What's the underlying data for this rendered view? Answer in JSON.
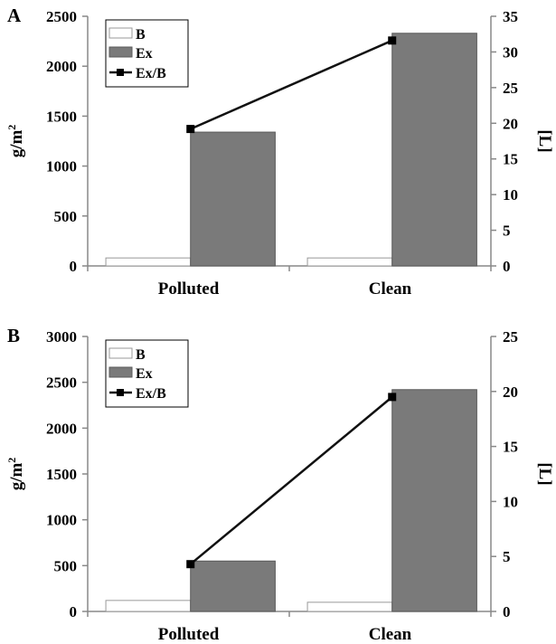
{
  "chart_data": [
    {
      "type": "bar",
      "panel_label": "A",
      "categories": [
        "Polluted",
        "Clean"
      ],
      "series": [
        {
          "name": "B",
          "values": [
            80,
            80
          ],
          "color": "#ffffff"
        },
        {
          "name": "Ex",
          "values": [
            1340,
            2330
          ],
          "color": "#7a7a7a"
        }
      ],
      "line_series": {
        "name": "Ex/B",
        "values": [
          19.2,
          31.6
        ],
        "axis": "right"
      },
      "ylabel": "g/m",
      "ylabel_sup": "2",
      "y2label": "[L]",
      "ylim": [
        0,
        2500
      ],
      "yticks": [
        "0",
        "500",
        "1000",
        "1500",
        "2000",
        "2500"
      ],
      "y2lim": [
        0,
        35
      ],
      "y2ticks": [
        "0",
        "5",
        "10",
        "15",
        "20",
        "25",
        "30",
        "35"
      ],
      "legend": [
        "B",
        "Ex",
        "Ex/B"
      ],
      "legend_position": "top-left"
    },
    {
      "type": "bar",
      "panel_label": "B",
      "categories": [
        "Polluted",
        "Clean"
      ],
      "series": [
        {
          "name": "B",
          "values": [
            120,
            100
          ],
          "color": "#ffffff"
        },
        {
          "name": "Ex",
          "values": [
            550,
            2420
          ],
          "color": "#7a7a7a"
        }
      ],
      "line_series": {
        "name": "Ex/B",
        "values": [
          4.3,
          19.5
        ],
        "axis": "right"
      },
      "ylabel": "g/m",
      "ylabel_sup": "2",
      "y2label": "[L]",
      "ylim": [
        0,
        3000
      ],
      "yticks": [
        "0",
        "500",
        "1000",
        "1500",
        "2000",
        "2500",
        "3000"
      ],
      "y2lim": [
        0,
        25
      ],
      "y2ticks": [
        "0",
        "5",
        "10",
        "15",
        "20",
        "25"
      ],
      "legend": [
        "B",
        "Ex",
        "Ex/B"
      ],
      "legend_position": "top-left"
    }
  ]
}
